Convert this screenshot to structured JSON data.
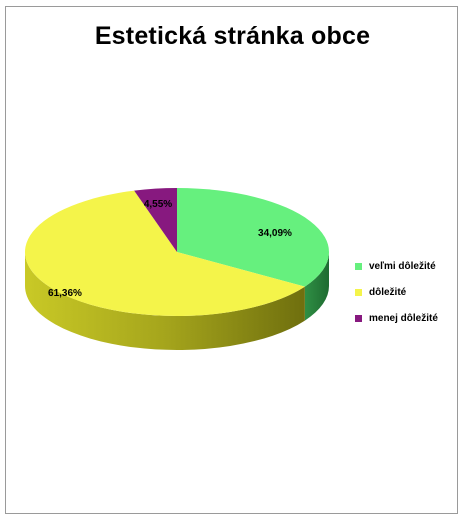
{
  "chart_data": {
    "type": "pie",
    "title": "Estetická stránka obce",
    "categories": [
      "veľmi dôležité",
      "dôležité",
      "menej dôležité"
    ],
    "values": [
      34.09,
      61.36,
      4.55
    ],
    "value_labels": [
      "34,09%",
      "61,36%",
      "4,55%"
    ],
    "colors": [
      "#66f07e",
      "#f4f44a",
      "#87197f"
    ],
    "side_colors": [
      "#2f8f44",
      "#9a9a1f",
      "#4a0b45"
    ],
    "legend_position": "right",
    "three_d": true
  }
}
